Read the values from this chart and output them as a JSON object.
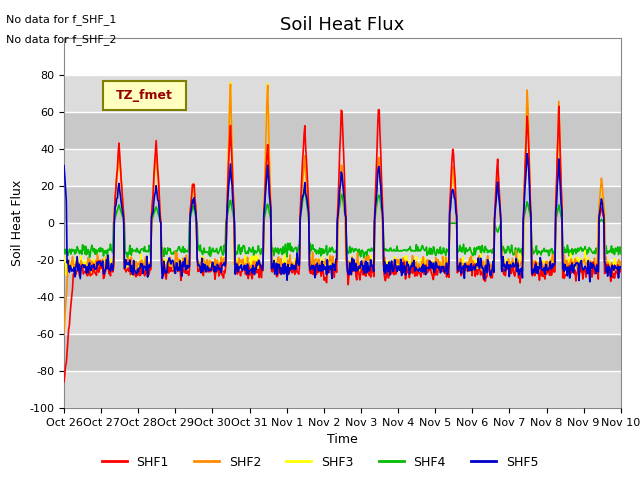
{
  "title": "Soil Heat Flux",
  "ylabel": "Soil Heat Flux",
  "xlabel": "Time",
  "ylim": [
    -100,
    100
  ],
  "annotations": [
    "No data for f_SHF_1",
    "No data for f_SHF_2"
  ],
  "legend_label": "TZ_fmet",
  "series_colors": {
    "SHF1": "#FF0000",
    "SHF2": "#FF8C00",
    "SHF3": "#FFFF00",
    "SHF4": "#00BB00",
    "SHF5": "#0000CC"
  },
  "series_names": [
    "SHF1",
    "SHF2",
    "SHF3",
    "SHF4",
    "SHF5"
  ],
  "tick_labels": [
    "Oct 26",
    "Oct 27",
    "Oct 28",
    "Oct 29",
    "Oct 30",
    "Oct 31",
    "Nov 1",
    "Nov 2",
    "Nov 3",
    "Nov 4",
    "Nov 5",
    "Nov 6",
    "Nov 7",
    "Nov 8",
    "Nov 9",
    "Nov 10"
  ],
  "yticks": [
    -100,
    -80,
    -60,
    -40,
    -20,
    0,
    20,
    40,
    60,
    80
  ],
  "band_colors": [
    "#DCDCDC",
    "#C8C8C8"
  ],
  "title_fontsize": 13,
  "axis_label_fontsize": 9,
  "tick_fontsize": 8,
  "legend_fontsize": 9
}
